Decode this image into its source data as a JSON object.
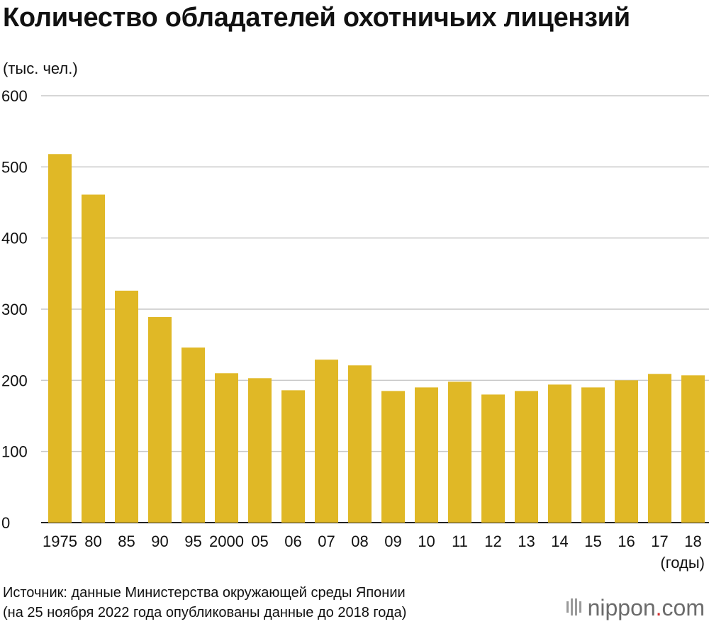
{
  "chart_data": {
    "type": "bar",
    "title": "Количество обладателей охотничьих лицензий",
    "ylabel": "(тыс. чел.)",
    "xlabel": "(годы)",
    "ylim": [
      0,
      600
    ],
    "yticks": [
      0,
      100,
      200,
      300,
      400,
      500,
      600
    ],
    "categories": [
      "1975",
      "80",
      "85",
      "90",
      "95",
      "2000",
      "05",
      "06",
      "07",
      "08",
      "09",
      "10",
      "11",
      "12",
      "13",
      "14",
      "15",
      "16",
      "17",
      "18"
    ],
    "values": [
      518,
      461,
      326,
      289,
      246,
      210,
      203,
      186,
      229,
      221,
      185,
      190,
      198,
      180,
      185,
      194,
      190,
      200,
      209,
      207
    ],
    "bar_color": "#e0b826",
    "grid": true,
    "grid_color": "#c8c8c8"
  },
  "source": {
    "line1": "Источник: данные Министерства окружающей среды Японии",
    "line2": "(на 25 ноября 2022 года опубликованы данные до 2018 года)"
  },
  "logo": {
    "text": "nippon",
    "dot": ".",
    "suffix": "com"
  }
}
